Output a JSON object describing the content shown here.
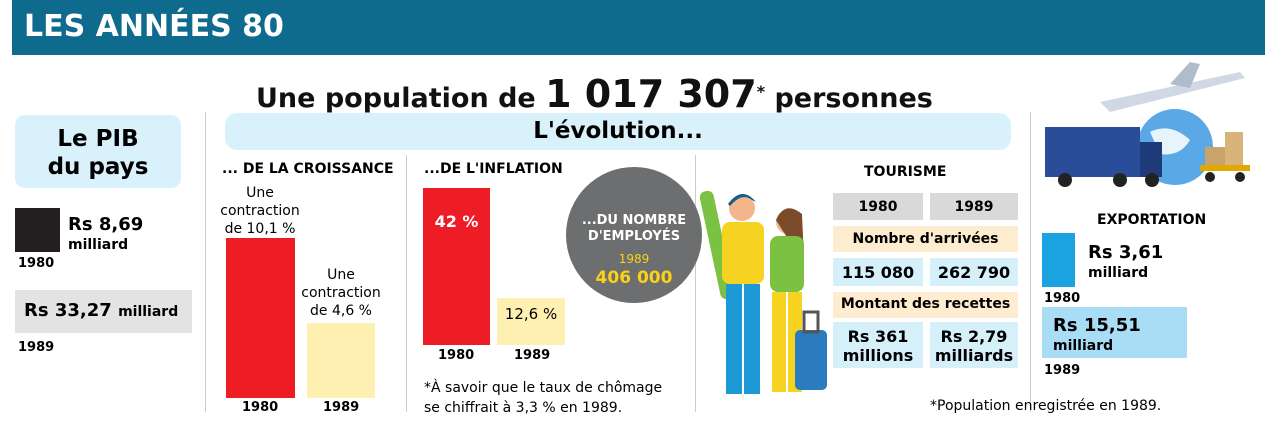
{
  "header": {
    "title": "LES ANNÉES 80"
  },
  "headline": {
    "prefix": "Une population de",
    "number": "1 017 307",
    "asterisk": "*",
    "suffix": "personnes"
  },
  "gdp": {
    "title": [
      "Le PIB",
      "du pays"
    ],
    "items": [
      {
        "amount": "Rs 8,69",
        "unit": "milliard",
        "year": "1980"
      },
      {
        "amount": "Rs 33,27",
        "unit": "milliard",
        "year": "1989"
      }
    ]
  },
  "evolution": {
    "title": "L'évolution..."
  },
  "growth": {
    "title": "... DE LA CROISSANCE",
    "items": [
      {
        "label": [
          "Une",
          "contraction",
          "de 10,1 %"
        ],
        "year": "1980"
      },
      {
        "label": [
          "Une",
          "contraction",
          "de 4,6 %"
        ],
        "year": "1989"
      }
    ]
  },
  "inflation": {
    "title": "...DE L'INFLATION",
    "items": [
      {
        "value": "42 %",
        "year": "1980"
      },
      {
        "value": "12,6 %",
        "year": "1989"
      }
    ],
    "note": [
      "*À savoir que le taux de chômage",
      "se chiffrait à 3,3 % en 1989."
    ]
  },
  "employees": {
    "title": [
      "...DU NOMBRE",
      "D'EMPLOYÉS"
    ],
    "year": "1989",
    "value": "406 000"
  },
  "tourism": {
    "title": "TOURISME",
    "years": [
      "1980",
      "1989"
    ],
    "arrivals": {
      "label": "Nombre d'arrivées",
      "values": [
        "115 080",
        "262 790"
      ]
    },
    "receipts": {
      "label": "Montant des recettes",
      "values": [
        [
          "Rs 361",
          "millions"
        ],
        [
          "Rs 2,79",
          "milliards"
        ]
      ]
    }
  },
  "exports": {
    "title": "EXPORTATION",
    "items": [
      {
        "amount": "Rs 3,61",
        "unit": "milliard",
        "year": "1980"
      },
      {
        "amount": "Rs 15,51",
        "unit": "milliard",
        "year": "1989"
      }
    ]
  },
  "footnote": "*Population enregistrée en 1989."
}
